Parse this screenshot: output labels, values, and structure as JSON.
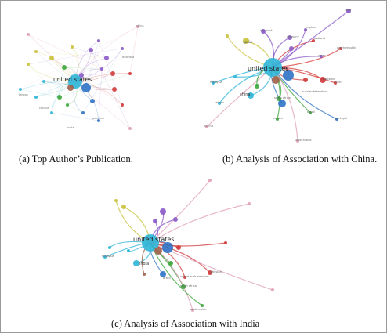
{
  "figure": {
    "panels": [
      {
        "id": "a",
        "caption": "(a) Top Author’s Publication.",
        "main_label": "united states",
        "small_labels": [
          "china",
          "taiwan",
          "pakistan",
          "australia",
          "canada",
          "india"
        ]
      },
      {
        "id": "b",
        "caption": "(b) Analysis of Association with China.",
        "main_label": "united states",
        "small_labels": [
          "spain",
          "denmark",
          "germany",
          "england",
          "scotland",
          "pakistan",
          "malaysia",
          "taiwan",
          "south africa",
          "brazil",
          "mexico",
          "portugal",
          "saudi arabia",
          "russian federation",
          "china",
          "japan",
          "czech republic",
          "israel",
          "chile",
          "austria"
        ]
      },
      {
        "id": "c",
        "caption": "(c) Analysis of Association with India",
        "main_label": "united states",
        "small_labels": [
          "south africa",
          "saudi arabia",
          "pakistan",
          "united arab emirates",
          "india",
          "brazil",
          "malaysia"
        ]
      }
    ],
    "colors": {
      "cluster_cyan": "#2fb6d8",
      "cluster_blue": "#2f73c6",
      "cluster_red": "#d23a3a",
      "cluster_green": "#3aa63a",
      "cluster_purple": "#8a5ac8",
      "cluster_yellow": "#c8c23a",
      "cluster_brown": "#a0604a",
      "cluster_pink": "#e0a0b8"
    }
  }
}
